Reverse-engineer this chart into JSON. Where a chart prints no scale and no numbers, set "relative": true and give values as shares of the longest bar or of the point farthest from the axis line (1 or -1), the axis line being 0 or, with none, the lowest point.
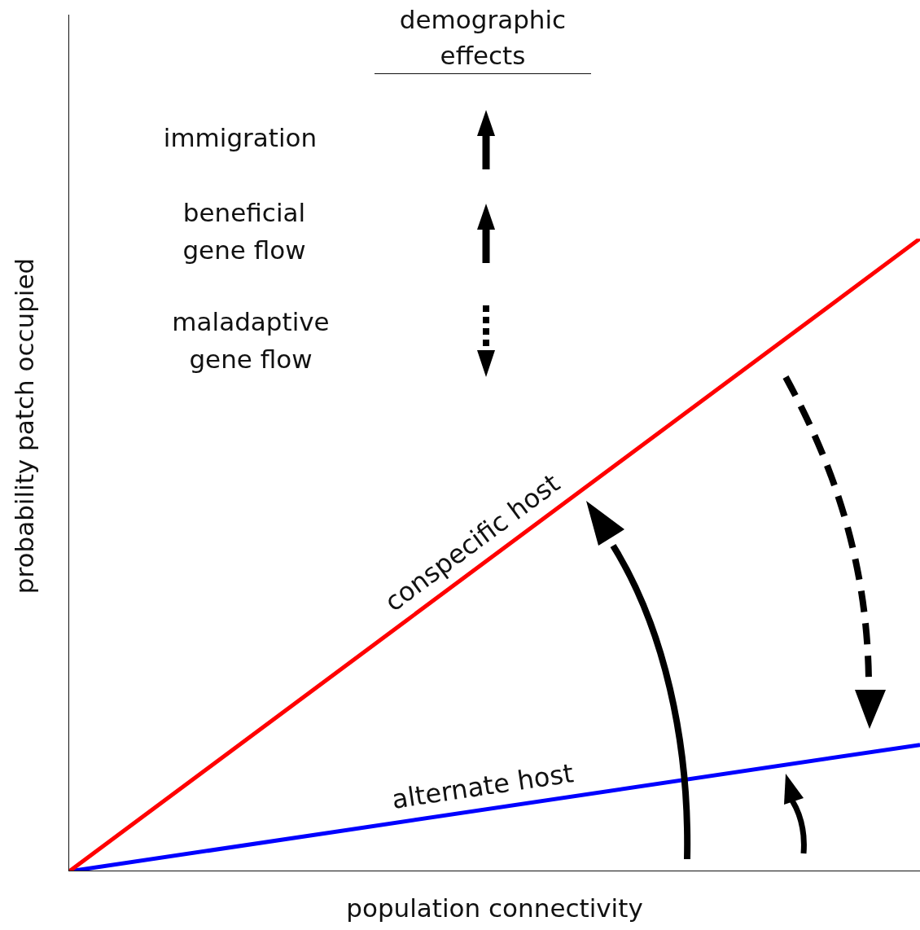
{
  "chart_data": {
    "type": "line",
    "relative": true,
    "xlabel": "population connectivity",
    "ylabel": "probability patch occupied",
    "categories": [
      null,
      null
    ],
    "series": [
      {
        "name": "conspecific host",
        "color": "#ff0000",
        "values": [
          0,
          1
        ]
      },
      {
        "name": "alternate host",
        "color": "#0000ff",
        "values": [
          0,
          0.2
        ]
      }
    ],
    "annotations": [
      "demographic\neffects",
      "immigration",
      "beneficial\ngene flow",
      "maladaptive\ngene flow"
    ],
    "marker": "none",
    "line_style": "solid",
    "legend": false
  }
}
